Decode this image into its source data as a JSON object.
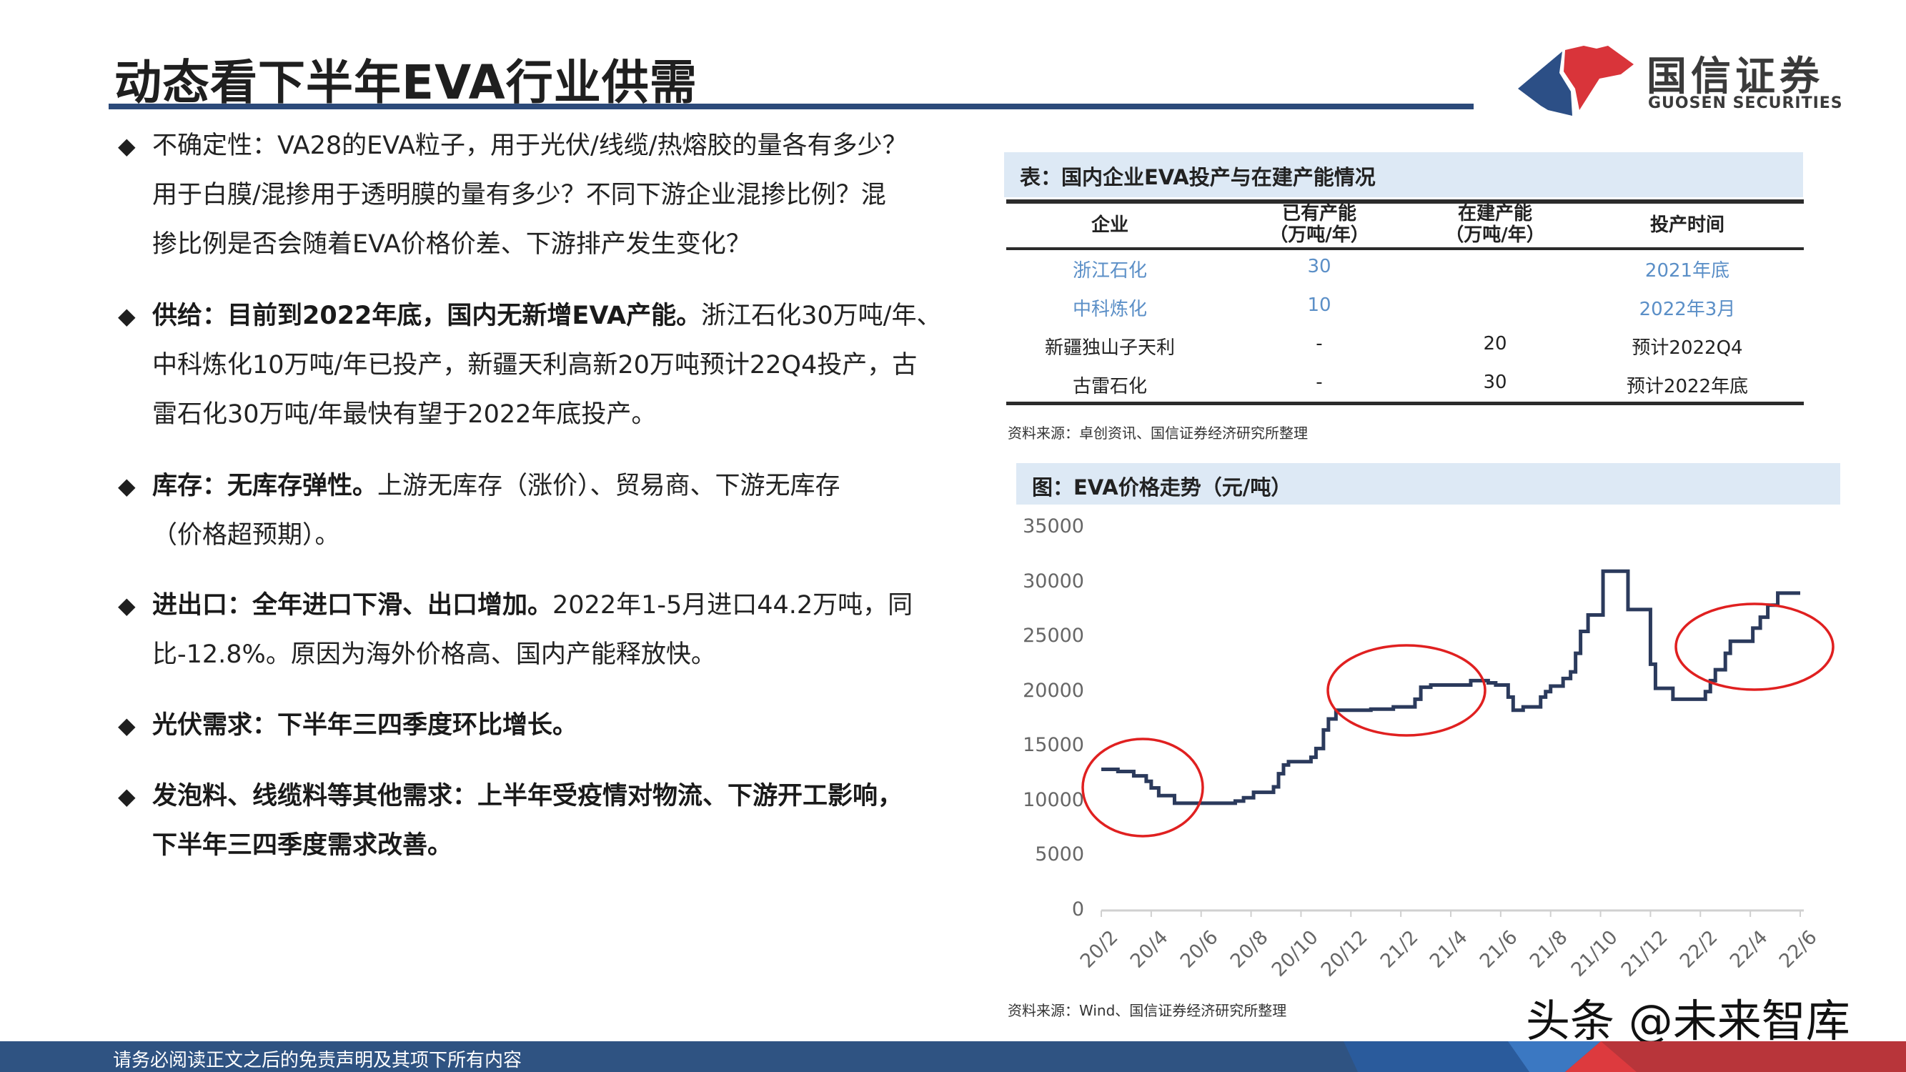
{
  "title": "动态看下半年EVA行业供需",
  "logo": {
    "cn": "国信证券",
    "en": "GUOSEN SECURITIES",
    "colors": {
      "blue": "#2c4f86",
      "red": "#d9343a"
    }
  },
  "bullets": [
    {
      "lines": [
        {
          "b": "",
          "t": "不确定性：VA28的EVA粒子，用于光伏/线缆/热熔胶的量各有多少？"
        },
        {
          "b": "",
          "t": "用于白膜/混掺用于透明膜的量有多少？不同下游企业混掺比例？混"
        },
        {
          "b": "",
          "t": "掺比例是否会随着EVA价格价差、下游排产发生变化？"
        }
      ]
    },
    {
      "lines": [
        {
          "b": "供给：目前到2022年底，国内无新增EVA产能。",
          "t": "浙江石化30万吨/年、"
        },
        {
          "b": "",
          "t": "中科炼化10万吨/年已投产，新疆天利高新20万吨预计22Q4投产，古"
        },
        {
          "b": "",
          "t": "雷石化30万吨/年最快有望于2022年底投产。"
        }
      ]
    },
    {
      "lines": [
        {
          "b": "库存：无库存弹性。",
          "t": "上游无库存（涨价）、贸易商、下游无库存"
        },
        {
          "b": "",
          "t": "（价格超预期）。"
        }
      ]
    },
    {
      "lines": [
        {
          "b": "进出口：全年进口下滑、出口增加。",
          "t": "2022年1-5月进口44.2万吨，同"
        },
        {
          "b": "",
          "t": "比-12.8%。原因为海外价格高、国内产能释放快。"
        }
      ]
    },
    {
      "lines": [
        {
          "b": "光伏需求：下半年三四季度环比增长。",
          "t": ""
        }
      ]
    },
    {
      "lines": [
        {
          "b": "发泡料、线缆料等其他需求：上半年受疫情对物流、下游开工影响，",
          "t": ""
        },
        {
          "b": "下半年三四季度需求改善。",
          "t": ""
        }
      ]
    }
  ],
  "bullet_mark": "◆",
  "table": {
    "title": "表：国内企业EVA投产与在建产能情况",
    "headers": [
      {
        "l1": "企业",
        "l2": ""
      },
      {
        "l1": "已有产能",
        "l2": "（万吨/年）"
      },
      {
        "l1": "在建产能",
        "l2": "（万吨/年）"
      },
      {
        "l1": "投产时间",
        "l2": ""
      }
    ],
    "rows": [
      {
        "cells": [
          "浙江石化",
          "30",
          "",
          "2021年底"
        ],
        "highlight": true
      },
      {
        "cells": [
          "中科炼化",
          "10",
          "",
          "2022年3月"
        ],
        "highlight": true
      },
      {
        "cells": [
          "新疆独山子天利",
          "-",
          "20",
          "预计2022Q4"
        ],
        "highlight": false
      },
      {
        "cells": [
          "古雷石化",
          "-",
          "30",
          "预计2022年底"
        ],
        "highlight": false
      }
    ],
    "highlight_color": "#5b8fc7",
    "source": "资料来源：卓创资讯、国信证券经济研究所整理"
  },
  "chart_data": {
    "type": "line",
    "title": "图：EVA价格走势（元/吨）",
    "ylim": [
      0,
      35000
    ],
    "yticks": [
      "0",
      "5000",
      "10000",
      "15000",
      "20000",
      "25000",
      "30000",
      "35000"
    ],
    "xticks": [
      "20/2",
      "20/4",
      "20/6",
      "20/8",
      "20/10",
      "20/12",
      "21/2",
      "21/4",
      "21/6",
      "21/8",
      "21/10",
      "21/12",
      "22/2",
      "22/4",
      "22/6"
    ],
    "grid": false,
    "line_color": "#2b3a5c",
    "annotation_color": "#e02020",
    "step": true,
    "points": [
      [
        "2020-02-01",
        12900
      ],
      [
        "2020-02-21",
        12700
      ],
      [
        "2020-03-10",
        12300
      ],
      [
        "2020-03-25",
        11800
      ],
      [
        "2020-04-01",
        11200
      ],
      [
        "2020-04-10",
        10500
      ],
      [
        "2020-04-29",
        9800
      ],
      [
        "2020-07-12",
        10000
      ],
      [
        "2020-07-22",
        10300
      ],
      [
        "2020-08-04",
        10800
      ],
      [
        "2020-08-28",
        11300
      ],
      [
        "2020-09-04",
        12500
      ],
      [
        "2020-09-10",
        13300
      ],
      [
        "2020-09-16",
        13600
      ],
      [
        "2020-10-13",
        14000
      ],
      [
        "2020-10-19",
        14800
      ],
      [
        "2020-10-28",
        16500
      ],
      [
        "2020-11-04",
        17500
      ],
      [
        "2020-11-13",
        18300
      ],
      [
        "2020-12-25",
        18400
      ],
      [
        "2021-01-22",
        18600
      ],
      [
        "2021-02-18",
        19300
      ],
      [
        "2021-02-25",
        20400
      ],
      [
        "2021-03-07",
        20600
      ],
      [
        "2021-04-25",
        21000
      ],
      [
        "2021-05-16",
        20800
      ],
      [
        "2021-05-25",
        20600
      ],
      [
        "2021-06-10",
        19500
      ],
      [
        "2021-06-16",
        18300
      ],
      [
        "2021-06-28",
        18600
      ],
      [
        "2021-07-19",
        19500
      ],
      [
        "2021-07-25",
        20000
      ],
      [
        "2021-08-01",
        20500
      ],
      [
        "2021-08-16",
        21200
      ],
      [
        "2021-08-25",
        21800
      ],
      [
        "2021-09-01",
        23500
      ],
      [
        "2021-09-07",
        25500
      ],
      [
        "2021-09-16",
        27000
      ],
      [
        "2021-10-04",
        31000
      ],
      [
        "2021-11-01",
        31000
      ],
      [
        "2021-11-04",
        27500
      ],
      [
        "2021-11-28",
        27500
      ],
      [
        "2021-12-01",
        22500
      ],
      [
        "2021-12-07",
        20300
      ],
      [
        "2021-12-28",
        19300
      ],
      [
        "2022-02-04",
        19300
      ],
      [
        "2022-02-07",
        20000
      ],
      [
        "2022-02-13",
        21000
      ],
      [
        "2022-02-19",
        22000
      ],
      [
        "2022-03-01",
        23500
      ],
      [
        "2022-03-07",
        24600
      ],
      [
        "2022-03-28",
        24600
      ],
      [
        "2022-04-04",
        25800
      ],
      [
        "2022-04-13",
        26800
      ],
      [
        "2022-04-22",
        27900
      ],
      [
        "2022-05-04",
        29000
      ],
      [
        "2022-06-01",
        29000
      ]
    ],
    "source": "资料来源：Wind、国信证券经济研究所整理"
  },
  "footer": {
    "disclaimer": "请务必阅读正文之后的免责声明及其项下所有内容",
    "bg": "#2f5382"
  },
  "watermark": "头条 @未来智库"
}
